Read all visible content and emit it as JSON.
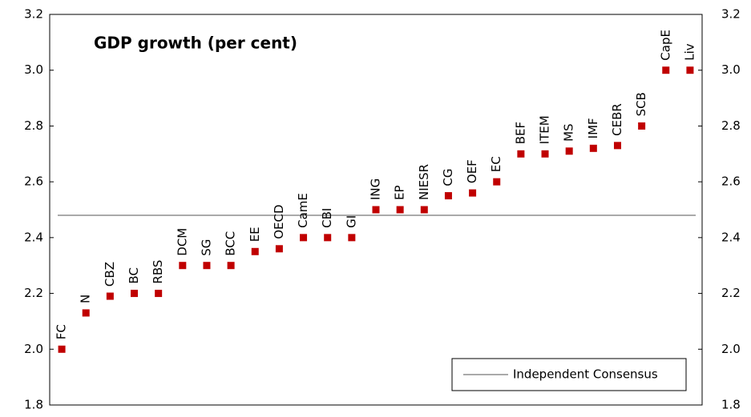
{
  "chart_data": {
    "type": "scatter",
    "title": "GDP growth (per cent)",
    "categories": [
      "FC",
      "N",
      "CBZ",
      "BC",
      "RBS",
      "DCM",
      "SG",
      "BCC",
      "EE",
      "OECD",
      "CamE",
      "CBI",
      "GI",
      "ING",
      "EP",
      "NIESR",
      "CG",
      "OEF",
      "EC",
      "BEF",
      "ITEM",
      "MS",
      "IMF",
      "CEBR",
      "SCB",
      "CapE",
      "Liv"
    ],
    "values": [
      2.0,
      2.13,
      2.19,
      2.2,
      2.2,
      2.3,
      2.3,
      2.3,
      2.35,
      2.36,
      2.4,
      2.4,
      2.4,
      2.5,
      2.5,
      2.5,
      2.55,
      2.56,
      2.6,
      2.7,
      2.7,
      2.71,
      2.72,
      2.73,
      2.8,
      3.0,
      3.0
    ],
    "color": "#c00000",
    "reference_line": {
      "name": "Independent Consensus",
      "value": 2.48,
      "color": "#555555"
    },
    "ylim": [
      1.8,
      3.2
    ],
    "yticks": [
      {
        "value": 1.8,
        "label": "1.8"
      },
      {
        "value": 2.0,
        "label": "2.0"
      },
      {
        "value": 2.2,
        "label": "2.2"
      },
      {
        "value": 2.4,
        "label": "2.4"
      },
      {
        "value": 2.6,
        "label": "2.6"
      },
      {
        "value": 2.8,
        "label": "2.8"
      },
      {
        "value": 3.0,
        "label": "3.0"
      },
      {
        "value": 3.2,
        "label": "3.2"
      }
    ],
    "y2lim": [
      1.8,
      3.2
    ],
    "y2ticks": [
      {
        "value": 1.8,
        "label": "1.8"
      },
      {
        "value": 2.0,
        "label": "2.0"
      },
      {
        "value": 2.2,
        "label": "2.2"
      },
      {
        "value": 2.4,
        "label": "2.4"
      },
      {
        "value": 2.6,
        "label": "2.6"
      },
      {
        "value": 2.8,
        "label": "2.8"
      },
      {
        "value": 3.0,
        "label": "3.0"
      },
      {
        "value": 3.2,
        "label": "3.2"
      }
    ],
    "legend": "lower right"
  }
}
